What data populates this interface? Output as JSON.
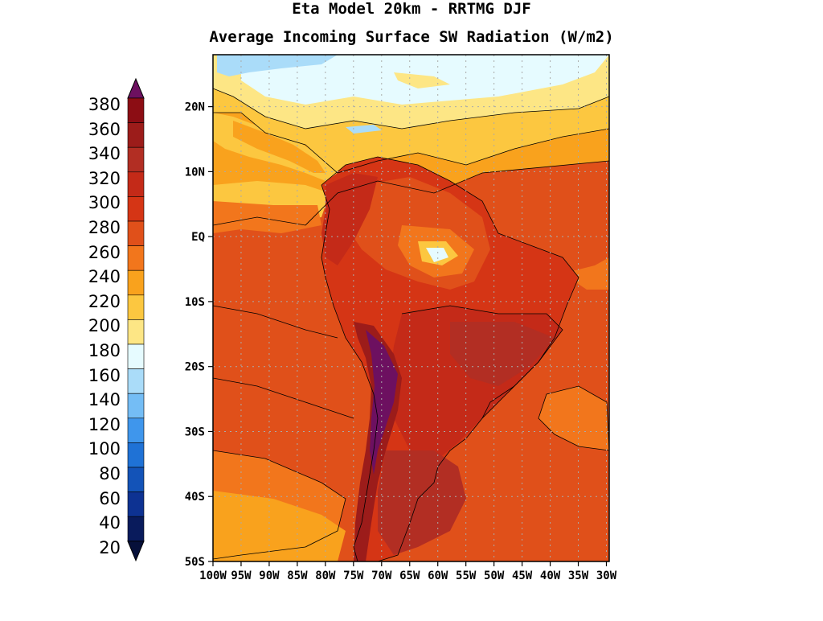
{
  "titles": {
    "line1": "Eta Model 20km - RRTMG DJF",
    "line2": "Average Incoming Surface SW Radiation (W/m2)"
  },
  "colorbar": {
    "labels": [
      "380",
      "360",
      "340",
      "320",
      "300",
      "280",
      "260",
      "240",
      "220",
      "200",
      "180",
      "160",
      "140",
      "120",
      "100",
      "80",
      "60",
      "40",
      "20"
    ],
    "colors": [
      "#6d1060",
      "#8c0d14",
      "#9c1c1a",
      "#b22e23",
      "#c42a18",
      "#d53515",
      "#e0501a",
      "#f2761c",
      "#f9a21d",
      "#fcc740",
      "#fde685",
      "#e6fbff",
      "#aadcf9",
      "#74bdf5",
      "#3f96ec",
      "#1f72d6",
      "#1353b8",
      "#0d3292",
      "#091b5c",
      "#06103a"
    ]
  },
  "axes": {
    "lat_labels": [
      "20N",
      "10N",
      "EQ",
      "10S",
      "20S",
      "30S",
      "40S",
      "50S"
    ],
    "lon_labels": [
      "100W",
      "95W",
      "90W",
      "85W",
      "80W",
      "75W",
      "70W",
      "65W",
      "60W",
      "55W",
      "50W",
      "45W",
      "40W",
      "35W",
      "30W"
    ]
  }
}
